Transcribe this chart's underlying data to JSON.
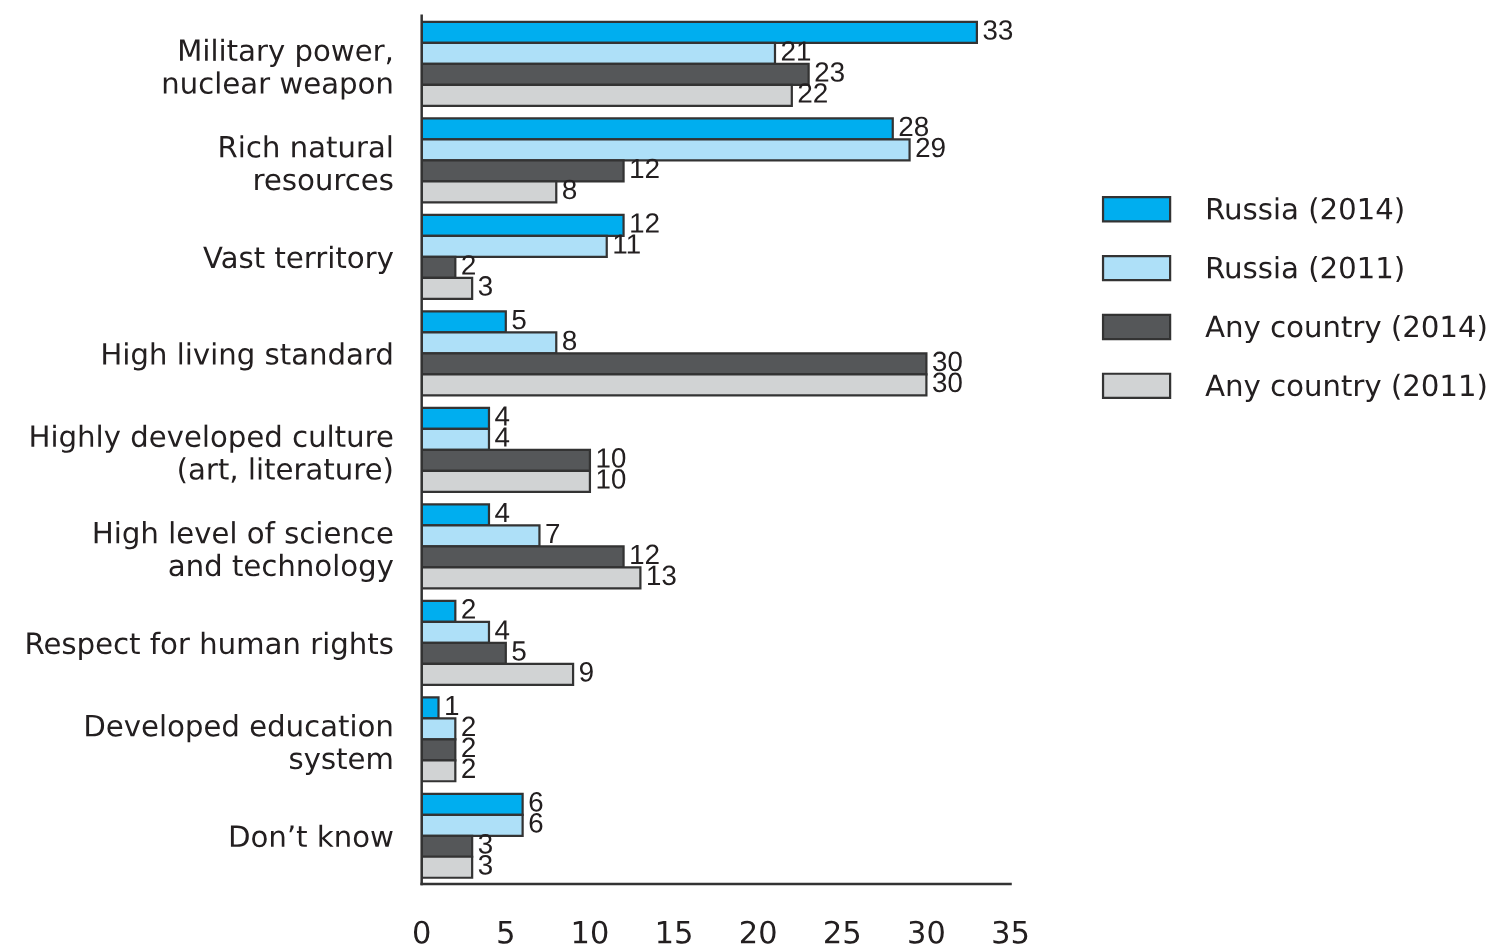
{
  "chart_data": {
    "type": "bar",
    "orientation": "horizontal",
    "categories": [
      "Military power,\nnuclear weapon",
      "Rich natural\nresources",
      "Vast territory",
      "High living standard",
      "Highly developed culture\n(art, literature)",
      "High level of science\nand technology",
      "Respect for human rights",
      "Developed education\nsystem",
      "Don’t know"
    ],
    "series": [
      {
        "name": "Russia (2014)",
        "color": "#00aeef",
        "values": [
          33,
          28,
          12,
          5,
          4,
          4,
          2,
          1,
          6
        ]
      },
      {
        "name": "Russia (2011)",
        "color": "#aee0f8",
        "values": [
          21,
          29,
          11,
          8,
          4,
          7,
          4,
          2,
          6
        ]
      },
      {
        "name": "Any country (2014)",
        "color": "#555759",
        "values": [
          23,
          12,
          2,
          30,
          10,
          12,
          5,
          2,
          3
        ]
      },
      {
        "name": "Any country (2011)",
        "color": "#d1d3d4",
        "values": [
          22,
          8,
          3,
          30,
          10,
          13,
          9,
          2,
          3
        ]
      }
    ],
    "xlim": [
      0,
      35
    ],
    "xticks": [
      0,
      5,
      10,
      15,
      20,
      25,
      30,
      35
    ],
    "data_labels": true,
    "legend": "right",
    "grid": false
  }
}
